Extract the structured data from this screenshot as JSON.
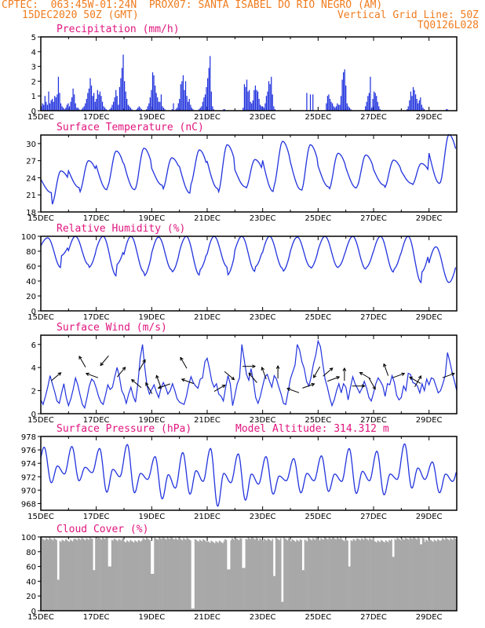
{
  "header": {
    "line1_left": "CPTEC:  063:45W-01:24N  PROX07: SANTA ISABEL DO RIO NEGRO (AM)",
    "line2_left": "15DEC2020 50Z (GMT)",
    "line2_right": "Vertical Grid Line: 50Z",
    "line3_right": "TQ0126L028"
  },
  "colors": {
    "header": "#f07c1e",
    "title": "#e0157e",
    "line": "#2233dd",
    "cloud": "#a8a8a8",
    "arrow": "#000000"
  },
  "x_tick_labels": [
    "15DEC",
    "17DEC",
    "19DEC",
    "21DEC",
    "23DEC",
    "25DEC",
    "27DEC",
    "29DEC"
  ],
  "model_altitude": "Model Altitude: 314.312 m",
  "chart_data": [
    {
      "type": "bar",
      "title": "Precipitation (mm/h)",
      "ylim": [
        0,
        5
      ],
      "yticks": [
        0,
        1,
        2,
        3,
        4,
        5
      ],
      "x": "hourly, 15DEC to 30DEC",
      "values": [
        0.3,
        0.5,
        0.4,
        1.0,
        0.6,
        0.4,
        1.3,
        0.5,
        0.7,
        0.8,
        0.6,
        1.0,
        0.9,
        1.1,
        2.3,
        1.2,
        0.5,
        0.3,
        0.2,
        0.1,
        0.2,
        0.4,
        0.5,
        0.3,
        0.6,
        0.9,
        1.5,
        1.1,
        0.5,
        0.2,
        0.2,
        0.1,
        0.0,
        0.1,
        0.2,
        0.3,
        0.5,
        0.8,
        1.2,
        1.5,
        2.2,
        1.7,
        1.0,
        1.2,
        0.6,
        0.8,
        1.4,
        1.1,
        1.3,
        1.0,
        0.6,
        0.3,
        0.2,
        0.1,
        0.0,
        0.0,
        0.1,
        0.2,
        0.4,
        0.6,
        0.9,
        1.4,
        1.0,
        0.4,
        1.6,
        2.2,
        2.9,
        3.8,
        2.0,
        1.3,
        0.8,
        0.4,
        0.3,
        0.2,
        0.1,
        0.0,
        0.0,
        0.0,
        0.1,
        0.2,
        0.3,
        0.2,
        0.1,
        0.0,
        0.0,
        0.0,
        0.1,
        0.3,
        0.5,
        0.9,
        1.4,
        2.6,
        2.4,
        1.7,
        1.2,
        0.9,
        0.6,
        0.6,
        1.1,
        0.3,
        0.2,
        0.1,
        0.0,
        0.0,
        0.0,
        0.0,
        0.0,
        0.1,
        0.5,
        0.0,
        0.1,
        0.2,
        0.5,
        0.8,
        1.8,
        2.0,
        2.4,
        1.4,
        2.0,
        1.0,
        0.6,
        0.8,
        0.4,
        0.2,
        0.1,
        0.0,
        0.0,
        0.0,
        0.0,
        0.1,
        0.2,
        0.3,
        0.6,
        0.9,
        1.1,
        1.6,
        2.2,
        2.9,
        3.7,
        1.3,
        0.3,
        0.1,
        0.0,
        0.0,
        0.0,
        0.0,
        0.0,
        0.0,
        0.0,
        0.1,
        0.1,
        0.0,
        0.0,
        0.0,
        0.0,
        0.0,
        0.0,
        0.0,
        0.0,
        0.0,
        0.0,
        0.0,
        0.0,
        0.0,
        0.0,
        0.2,
        1.8,
        1.6,
        2.1,
        1.3,
        1.4,
        0.6,
        0.5,
        0.7,
        1.4,
        1.7,
        1.4,
        1.3,
        0.8,
        0.4,
        0.3,
        0.3,
        0.2,
        0.5,
        1.0,
        1.3,
        2.0,
        1.8,
        2.3,
        1.1,
        0.3,
        0.1,
        0.0,
        0.0,
        0.0,
        0.0,
        0.0,
        0.0,
        0.0,
        0.0,
        0.0,
        0.0,
        0.0,
        0.0,
        0.0,
        0.0,
        0.0,
        0.0,
        0.0,
        0.0,
        0.0,
        0.0,
        0.0,
        0.0,
        0.0,
        0.0,
        0.0,
        1.2,
        0.0,
        0.0,
        1.1,
        0.0,
        1.1,
        0.0,
        0.0,
        0.0,
        0.0,
        0.0,
        0.0,
        0.0,
        0.0,
        0.0,
        0.0,
        0.5,
        1.0,
        1.1,
        0.8,
        0.6,
        0.5,
        0.3,
        0.2,
        0.3,
        0.5,
        0.4,
        0.4,
        1.0,
        2.1,
        2.6,
        2.8,
        1.7,
        0.5,
        0.3,
        0.2,
        0.1,
        0.0,
        0.0,
        0.0,
        0.0,
        0.0,
        0.0,
        0.0,
        0.0,
        0.0,
        0.0,
        0.0,
        0.3,
        0.6,
        1.0,
        1.2,
        2.3,
        0.2,
        0.8,
        1.3,
        1.2,
        1.0,
        0.6,
        0.3,
        0.1,
        0.0,
        0.0,
        0.0,
        0.0,
        0.0,
        0.0,
        0.0,
        0.0,
        0.0,
        0.0,
        0.0,
        0.0,
        0.0,
        0.0,
        0.0,
        0.0,
        0.0,
        0.0,
        0.0,
        0.0,
        0.0,
        0.1,
        0.3,
        0.7,
        1.3,
        1.0,
        1.6,
        1.4,
        1.1,
        0.8,
        0.5,
        0.7,
        0.9,
        0.4,
        0.2,
        0.1,
        0.0,
        0.0,
        0.0,
        0.0,
        0.0,
        0.0,
        0.0,
        0.0,
        0.0,
        0.0,
        0.0,
        0.0,
        0.0,
        0.0,
        0.0,
        0.0,
        0.0,
        0.1,
        0.1,
        0.0,
        0.0,
        0.0,
        0.0,
        0.0,
        0.0,
        0.0
      ]
    },
    {
      "type": "line",
      "title": "Surface Temperature (nC)",
      "ylim": [
        18,
        31.5
      ],
      "yticks": [
        18,
        21,
        24,
        27,
        30
      ],
      "days": 15,
      "daily_max": [
        25.2,
        27.0,
        28.7,
        29.2,
        27.5,
        28.9,
        29.8,
        27.2,
        30.4,
        29.8,
        28.3,
        28.0,
        27.1,
        26.5,
        31.6
      ],
      "daily_min": [
        19.2,
        21.4,
        22.3,
        21.9,
        21.9,
        22.7,
        21.3,
        22.1,
        22.4,
        21.6,
        21.9,
        22.4,
        22.2,
        22.7,
        23.0
      ]
    },
    {
      "type": "line",
      "title": "Relative Humidity (%)",
      "ylim": [
        0,
        100
      ],
      "yticks": [
        0,
        20,
        40,
        60,
        80,
        100
      ],
      "days": 15,
      "daily_max": [
        98,
        100,
        100,
        100,
        99,
        100,
        100,
        100,
        100,
        99,
        100,
        100,
        100,
        100,
        86
      ],
      "daily_min": [
        74,
        58,
        62,
        47,
        52,
        55,
        48,
        59,
        53,
        57,
        59,
        58,
        56,
        52,
        38
      ]
    },
    {
      "type": "line",
      "title": "Surface Wind (m/s)",
      "ylim": [
        0,
        6.8
      ],
      "yticks": [
        0,
        2,
        4,
        6
      ],
      "values": [
        1.2,
        0.8,
        1.5,
        2.3,
        3.3,
        2.6,
        1.9,
        1.1,
        0.9,
        1.8,
        2.6,
        1.4,
        0.7,
        1.3,
        2.1,
        3.1,
        2.5,
        1.6,
        0.8,
        0.5,
        1.4,
        2.4,
        3.0,
        2.8,
        2.2,
        1.5,
        1.0,
        0.8,
        1.6,
        2.5,
        2.1,
        2.3,
        3.2,
        4.0,
        3.2,
        2.0,
        1.6,
        0.9,
        1.7,
        2.3,
        1.5,
        1.0,
        2.6,
        4.8,
        6.0,
        4.0,
        2.4,
        1.7,
        2.1,
        2.5,
        1.9,
        1.4,
        2.2,
        2.7,
        2.3,
        1.7,
        2.0,
        2.6,
        2.0,
        1.3,
        1.0,
        0.9,
        0.8,
        1.5,
        2.5,
        3.2,
        2.7,
        2.4,
        2.2,
        3.0,
        3.1,
        4.5,
        4.8,
        3.9,
        2.8,
        2.3,
        2.6,
        1.7,
        1.5,
        1.1,
        2.3,
        3.3,
        2.6,
        0.7,
        1.6,
        2.6,
        3.1,
        6.0,
        4.7,
        3.4,
        2.9,
        3.9,
        2.8,
        1.4,
        0.9,
        1.5,
        2.4,
        3.2,
        3.4,
        2.8,
        2.3,
        3.3,
        3.0,
        2.3,
        1.7,
        0.9,
        0.8,
        1.9,
        3.0,
        3.6,
        4.2,
        6.0,
        5.5,
        4.5,
        3.9,
        2.8,
        2.4,
        3.2,
        4.3,
        5.1,
        6.3,
        5.8,
        4.4,
        3.0,
        2.3,
        1.4,
        0.7,
        1.2,
        2.0,
        2.6,
        1.8,
        2.6,
        2.3,
        1.2,
        2.3,
        3.2,
        2.6,
        2.2,
        1.8,
        2.2,
        2.8,
        2.2,
        1.4,
        1.1,
        1.8,
        2.6,
        3.1,
        2.8,
        2.4,
        1.5,
        2.6,
        2.5,
        3.3,
        2.7,
        1.6,
        1.2,
        1.4,
        2.4,
        2.0,
        3.5,
        3.4,
        2.7,
        2.6,
        2.4,
        1.8,
        2.6,
        2.0,
        3.0,
        2.5,
        3.1,
        3.0,
        2.4,
        1.8,
        2.0,
        2.6,
        3.3,
        5.3,
        4.5,
        3.6,
        2.8,
        2.0
      ]
    },
    {
      "type": "line",
      "title": "Surface Pressure (hPa)",
      "ylim": [
        967,
        978
      ],
      "yticks": [
        968,
        970,
        972,
        974,
        976,
        978
      ],
      "days": 15,
      "max1": [
        976.4,
        976.5,
        976.2,
        976.8,
        975.0,
        975.6,
        976.2,
        975.4,
        975.0,
        974.7,
        975.1,
        976.2,
        975.8,
        976.9,
        974.2
      ],
      "min1": [
        971.1,
        971.4,
        969.7,
        969.6,
        968.7,
        969.4,
        967.6,
        968.5,
        969.4,
        969.6,
        969.8,
        969.5,
        969.3,
        970.3,
        969.6
      ],
      "max2": [
        973.6,
        973.4,
        973.1,
        972.5,
        972.3,
        972.9,
        972.5,
        972.4,
        972.1,
        972.5,
        972.4,
        972.8,
        972.4,
        973.3,
        972.4
      ],
      "min2": [
        972.4,
        972.6,
        972.0,
        971.6,
        970.3,
        971.3,
        971.1,
        970.9,
        971.4,
        971.4,
        971.3,
        971.4,
        971.6,
        971.6,
        971.3
      ]
    },
    {
      "type": "area",
      "title": "Cloud Cover (%)",
      "ylim": [
        0,
        100
      ],
      "yticks": [
        0,
        20,
        40,
        60,
        80,
        100
      ],
      "values_base": [
        99,
        97,
        99,
        100,
        98,
        96,
        99,
        100,
        99,
        97,
        95,
        99,
        100,
        98,
        99,
        97,
        99,
        100,
        98,
        99,
        96,
        99,
        100,
        97,
        99
      ],
      "dips": [
        [
          0.6,
          42
        ],
        [
          1.9,
          55
        ],
        [
          2.45,
          60
        ],
        [
          4.0,
          50
        ],
        [
          5.45,
          3
        ],
        [
          6.75,
          56
        ],
        [
          7.3,
          58
        ],
        [
          8.4,
          47
        ],
        [
          8.7,
          12
        ],
        [
          9.45,
          55
        ],
        [
          11.1,
          60
        ],
        [
          12.7,
          73
        ],
        [
          13.7,
          90
        ]
      ]
    }
  ]
}
